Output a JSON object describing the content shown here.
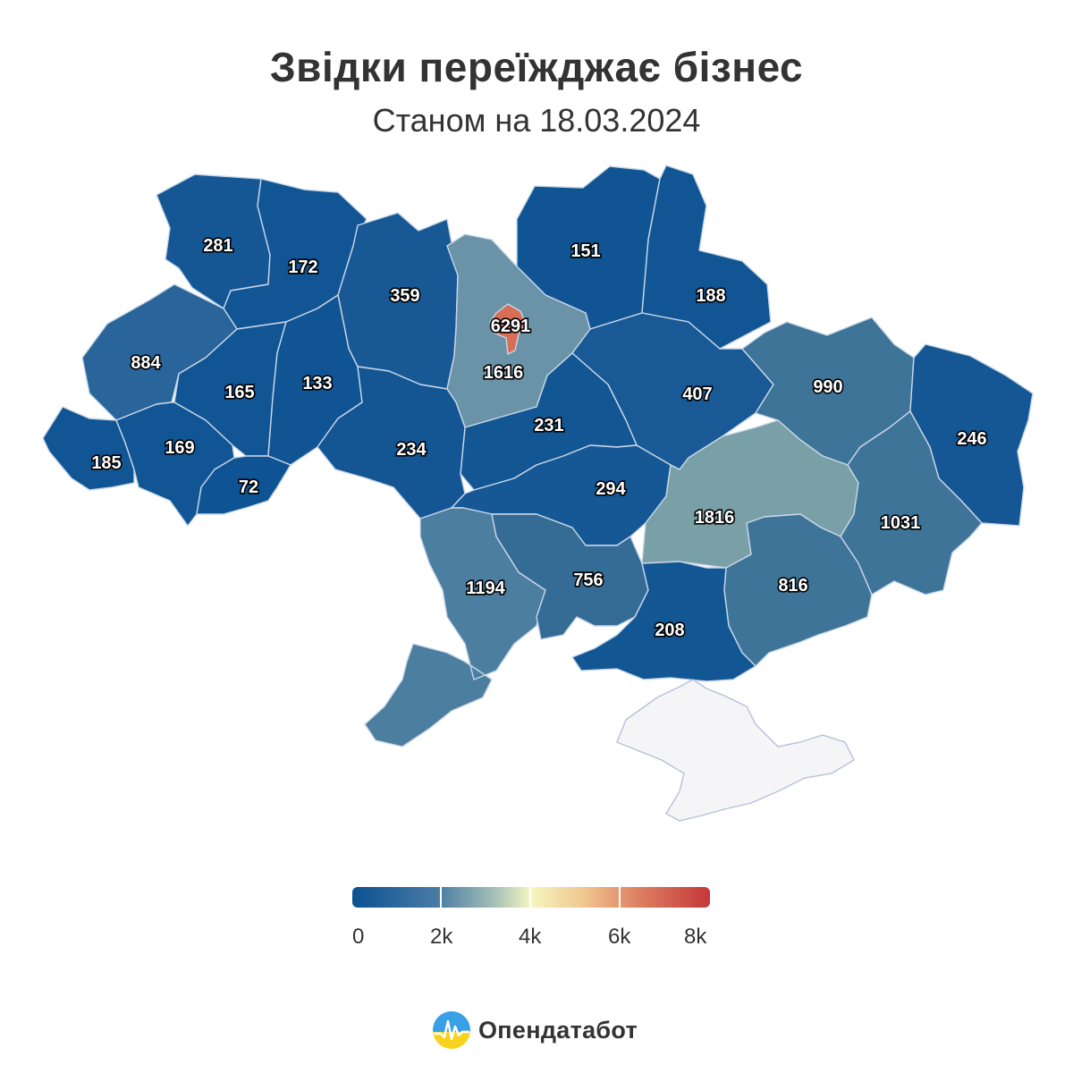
{
  "title": "Звідки переїжджає бізнес",
  "subtitle": "Станом на 18.03.2024",
  "chart_data": {
    "type": "choropleth",
    "title": "Звідки переїжджає бізнес",
    "subtitle": "Станом на 18.03.2024",
    "scale": {
      "min": 0,
      "max": 8000,
      "ticks": [
        "0",
        "2k",
        "4k",
        "6k",
        "8k"
      ]
    },
    "values": [
      "281",
      "172",
      "359",
      "151",
      "188",
      "884",
      "165",
      "133",
      "6291",
      "1616",
      "407",
      "990",
      "246",
      "231",
      "234",
      "185",
      "169",
      "72",
      "294",
      "1816",
      "1031",
      "1194",
      "756",
      "816",
      "208"
    ]
  },
  "colors": {
    "low": "#0c5192",
    "mid": "#f6f6c0",
    "high": "#c5383a",
    "crimea": "#f5f5f7"
  },
  "brand": {
    "name": "Опендатабот",
    "icon": "opendatabot-logo-icon"
  }
}
